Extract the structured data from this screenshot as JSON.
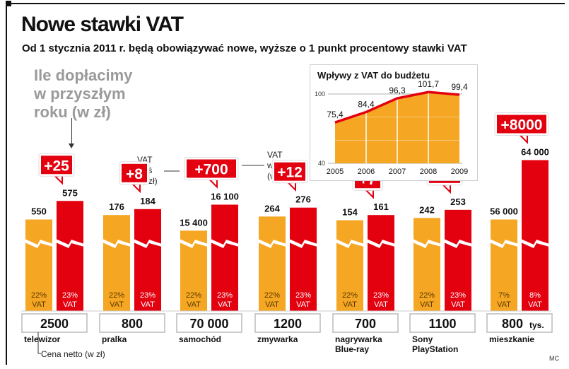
{
  "title": "Nowe stawki VAT",
  "subtitle": "Od 1 stycznia 2011 r. będą obowiązywać nowe, wyższe o 1 punkt procentowy stawki VAT",
  "legend_question": [
    "Ile dopłacimy",
    "w przyszłym",
    "roku (w zł)"
  ],
  "note_vat_today": [
    "VAT",
    "dziś",
    "(w zł)"
  ],
  "note_vat_2011": [
    "VAT",
    "w 2011",
    "(w zł)"
  ],
  "note_net_price": "Cena netto (w zł)",
  "credit": "MC",
  "colors": {
    "vat_today": "#F5A623",
    "vat_2011": "#E3000F",
    "text": "#111111"
  },
  "chart_data": [
    {
      "type": "bar",
      "note": "Bars are shown with a zigzag break (truncated scale).",
      "categories": [
        "telewizor",
        "pralka",
        "samochód",
        "zmywarka",
        "nagrywarka Blue-ray",
        "Sony PlayStation",
        "mieszkanie"
      ],
      "category_lines": [
        [
          "telewizor"
        ],
        [
          "pralka"
        ],
        [
          "samochód"
        ],
        [
          "zmywarka"
        ],
        [
          "nagrywarka",
          "Blue-ray"
        ],
        [
          "Sony",
          "PlayStation"
        ],
        [
          "mieszkanie"
        ]
      ],
      "net_price_labels": [
        "2500",
        "800",
        "70 000",
        "1200",
        "700",
        "1100",
        "800"
      ],
      "net_price_suffix": [
        "",
        "",
        "",
        "",
        "",
        "",
        "tys."
      ],
      "series": [
        {
          "values": [
            550,
            176,
            15400,
            264,
            154,
            242,
            56000
          ],
          "labels": [
            "550",
            "176",
            "15 400",
            "264",
            "154",
            "242",
            "56 000"
          ],
          "rates": [
            "22%",
            "22%",
            "22%",
            "22%",
            "22%",
            "22%",
            "7%"
          ]
        },
        {
          "values": [
            575,
            184,
            16100,
            276,
            161,
            253,
            64000
          ],
          "labels": [
            "575",
            "184",
            "16 100",
            "276",
            "161",
            "253",
            "64 000"
          ],
          "rates": [
            "23%",
            "23%",
            "23%",
            "23%",
            "23%",
            "23%",
            "8%"
          ]
        }
      ],
      "rate_suffix": "VAT",
      "differences": [
        "+25",
        "+8",
        "+700",
        "+12",
        "+7",
        "+11",
        "+8000"
      ]
    },
    {
      "type": "area",
      "title": "Wpływy z VAT do budżetu",
      "x": [
        "2005",
        "2006",
        "2007",
        "2008",
        "2009"
      ],
      "y": [
        75.4,
        84.4,
        96.3,
        101.7,
        99.4
      ],
      "y_labels": [
        "75,4",
        "84,4",
        "96,3",
        "101,7",
        "99,4"
      ],
      "ylim": [
        40,
        100
      ],
      "yticks": [
        "100",
        "40"
      ]
    }
  ]
}
